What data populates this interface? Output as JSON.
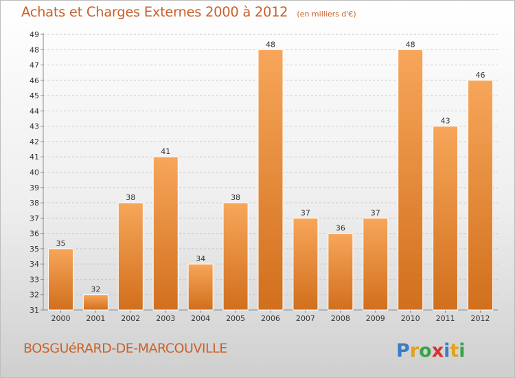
{
  "header": {
    "title": "Achats et Charges Externes 2000 à 2012",
    "subtitle": "(en milliers d'€)"
  },
  "footer": {
    "commune": "BOSGUéRARD-DE-MARCOUVILLE",
    "logo_text": "Proxiti"
  },
  "colors": {
    "bar_light": "#f7a65a",
    "bar_dark": "#d16f1c",
    "title": "#c9612a",
    "grid": "#c8c8c8"
  },
  "chart_data": {
    "type": "bar",
    "title": "Achats et Charges Externes 2000 à 2012",
    "subtitle": "(en milliers d'€)",
    "categories": [
      "2000",
      "2001",
      "2002",
      "2003",
      "2004",
      "2005",
      "2006",
      "2007",
      "2008",
      "2009",
      "2010",
      "2011",
      "2012"
    ],
    "values": [
      35,
      32,
      38,
      41,
      34,
      38,
      48,
      37,
      36,
      37,
      48,
      43,
      46
    ],
    "ylim": [
      31,
      49
    ],
    "yticks": [
      31,
      32,
      33,
      34,
      35,
      36,
      37,
      38,
      39,
      40,
      41,
      42,
      43,
      44,
      45,
      46,
      47,
      48,
      49
    ],
    "grid": true,
    "data_labels": true
  }
}
